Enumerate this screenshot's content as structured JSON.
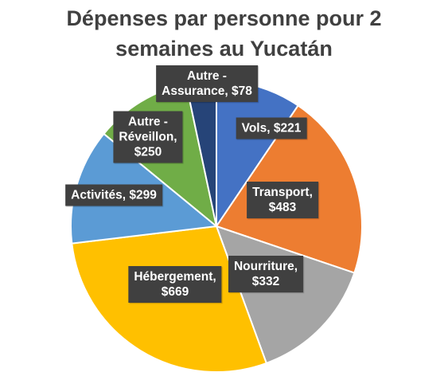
{
  "chart_data": {
    "type": "pie",
    "title_lines": [
      "Dépenses par personne pour 2",
      "semaines au Yucatán"
    ],
    "start_angle_deg": 0,
    "direction": "clockwise",
    "slices": [
      {
        "category": "Vols",
        "value": 221,
        "color": "#4472C4",
        "label_lines": [
          "Vols,  $221"
        ]
      },
      {
        "category": "Transport",
        "value": 483,
        "color": "#ED7D31",
        "label_lines": [
          "Transport,",
          "$483"
        ]
      },
      {
        "category": "Nourriture",
        "value": 332,
        "color": "#A5A5A5",
        "label_lines": [
          "Nourriture,",
          "$332"
        ]
      },
      {
        "category": "Hébergement",
        "value": 669,
        "color": "#FFC000",
        "label_lines": [
          "Hébergement,",
          "$669"
        ]
      },
      {
        "category": "Activités",
        "value": 299,
        "color": "#5B9BD5",
        "label_lines": [
          "Activités,  $299"
        ]
      },
      {
        "category": "Autre - Réveillon",
        "value": 250,
        "color": "#70AD47",
        "label_lines": [
          "Autre -",
          "Réveillon,",
          "$250"
        ]
      },
      {
        "category": "Autre - Assurance",
        "value": 78,
        "color": "#264478",
        "label_lines": [
          "Autre -",
          "Assurance,  $78"
        ]
      }
    ]
  }
}
